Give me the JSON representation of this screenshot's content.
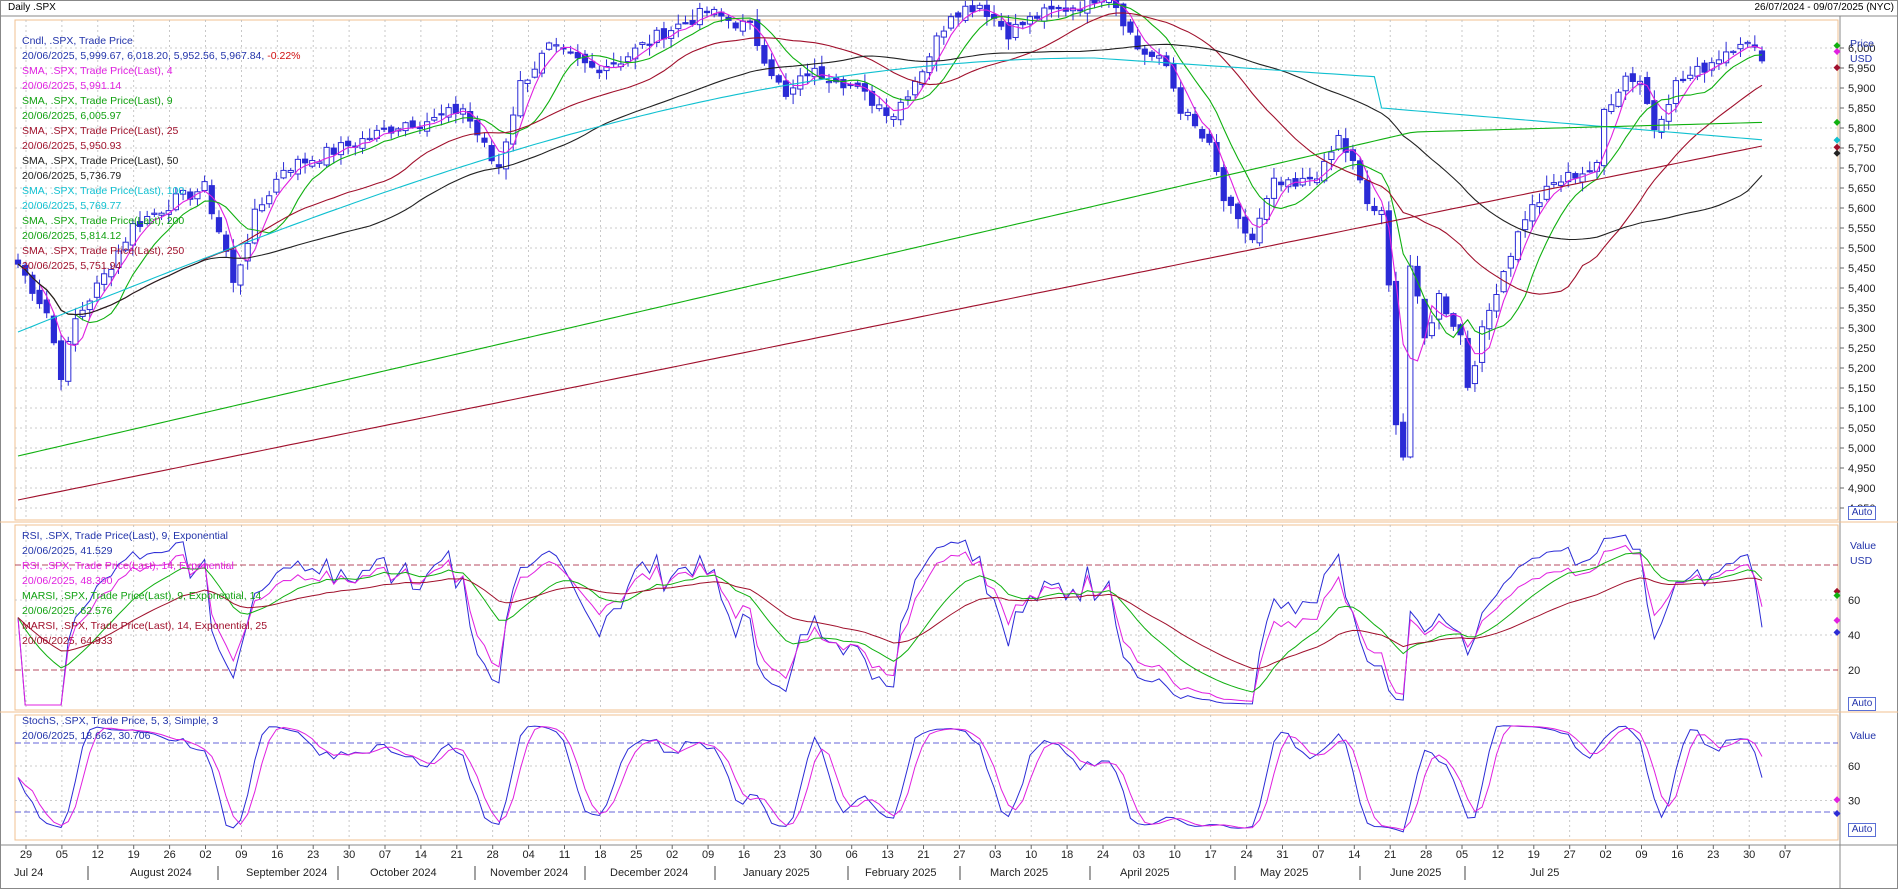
{
  "header": {
    "left": "Daily .SPX",
    "right": "26/07/2024 - 09/07/2025 (NYC)"
  },
  "colors": {
    "candle": "#2b2bd6",
    "sma4": "#e020e0",
    "sma9": "#10b010",
    "sma25": "#a0102c",
    "sma50": "#222222",
    "sma100": "#10c0d0",
    "sma200": "#10b010",
    "sma250": "#a0102c",
    "rsi9": "#2b2bd6",
    "rsi14": "#e020e0",
    "marsi9": "#10b010",
    "marsi14": "#a0102c",
    "stochK": "#2b2bd6",
    "stochD": "#e020e0",
    "grid": "#bbbbbb",
    "frame": "#f0c090"
  },
  "legend": {
    "cndl": {
      "title": "Cndl, .SPX, Trade Price",
      "date": "20/06/2025,",
      "ohlc": "5,999.67, 6,018.20, 5,952.56, 5,967.84,",
      "chg": "-0.22%"
    },
    "sma4": {
      "title": "SMA, .SPX, Trade Price(Last), 4",
      "value": "20/06/2025, 5,991.14"
    },
    "sma9": {
      "title": "SMA, .SPX, Trade Price(Last), 9",
      "value": "20/06/2025, 6,005.97"
    },
    "sma25": {
      "title": "SMA, .SPX, Trade Price(Last), 25",
      "value": "20/06/2025, 5,950.93"
    },
    "sma50": {
      "title": "SMA, .SPX, Trade Price(Last), 50",
      "value": "20/06/2025, 5,736.79"
    },
    "sma100": {
      "title": "SMA, .SPX, Trade Price(Last), 100",
      "value": "20/06/2025, 5,769.77"
    },
    "sma200": {
      "title": "SMA, .SPX, Trade Price(Last), 200",
      "value": "20/06/2025, 5,814.12"
    },
    "sma250": {
      "title": "SMA, .SPX, Trade Price(Last), 250",
      "value": "20/06/2025, 5,751.94"
    }
  },
  "legend_rsi": {
    "rsi9": {
      "title": "RSI, .SPX, Trade Price(Last), 9, Exponential",
      "value": "20/06/2025, 41.529"
    },
    "rsi14": {
      "title": "RSI, .SPX, Trade Price(Last), 14, Exponential",
      "value": "20/06/2025, 48.390"
    },
    "marsi9": {
      "title": "MARSI, .SPX, Trade Price(Last), 9, Exponential, 14",
      "value": "20/06/2025, 62.576"
    },
    "marsi14": {
      "title": "MARSI, .SPX, Trade Price(Last), 14, Exponential, 25",
      "value": "20/06/2025, 64.933"
    }
  },
  "legend_stoch": {
    "title": "StochS, .SPX, Trade Price, 5, 3, Simple, 3",
    "value": "20/06/2025, 18.662, 30.706"
  },
  "axis": {
    "price_title": "Price",
    "price_unit": "USD",
    "value_title": "Value",
    "value_unit": "USD",
    "stoch_title": "Value",
    "auto": "Auto",
    "price_ticks": [
      "6,000",
      "5,950",
      "5,900",
      "5,850",
      "5,800",
      "5,750",
      "5,700",
      "5,650",
      "5,600",
      "5,550",
      "5,500",
      "5,450",
      "5,400",
      "5,350",
      "5,300",
      "5,250",
      "5,200",
      "5,150",
      "5,100",
      "5,050",
      "5,000",
      "4,950",
      "4,900",
      "4,850"
    ],
    "rsi_ticks": [
      "60",
      "40",
      "20"
    ],
    "stoch_ticks": [
      "60",
      "30"
    ]
  },
  "x_axis": {
    "days": [
      "29",
      "05",
      "12",
      "19",
      "26",
      "02",
      "09",
      "16",
      "23",
      "30",
      "07",
      "14",
      "21",
      "28",
      "04",
      "11",
      "18",
      "25",
      "02",
      "09",
      "16",
      "23",
      "30",
      "06",
      "13",
      "21",
      "27",
      "03",
      "10",
      "18",
      "24",
      "03",
      "10",
      "17",
      "24",
      "31",
      "07",
      "14",
      "21",
      "28",
      "05",
      "12",
      "19",
      "27",
      "02",
      "09",
      "16",
      "23",
      "30",
      "07"
    ],
    "months": [
      "Jul 24",
      "August 2024",
      "September 2024",
      "October 2024",
      "November 2024",
      "December 2024",
      "January 2025",
      "February 2025",
      "March 2025",
      "April 2025",
      "May 2025",
      "June 2025",
      "Jul 25"
    ]
  },
  "chart_data": {
    "type": "candlestick",
    "symbol": ".SPX",
    "price_range": [
      4820,
      6070
    ],
    "sample_closes": [
      {
        "date": "2024-07-26",
        "close": 5459
      },
      {
        "date": "2024-08-05",
        "close": 5186
      },
      {
        "date": "2024-08-09",
        "close": 5344
      },
      {
        "date": "2024-08-16",
        "close": 5554
      },
      {
        "date": "2024-08-30",
        "close": 5648
      },
      {
        "date": "2024-09-06",
        "close": 5408
      },
      {
        "date": "2024-09-19",
        "close": 5713
      },
      {
        "date": "2024-10-11",
        "close": 5815
      },
      {
        "date": "2024-10-31",
        "close": 5705
      },
      {
        "date": "2024-11-11",
        "close": 6001
      },
      {
        "date": "2024-12-06",
        "close": 6090
      },
      {
        "date": "2024-12-18",
        "close": 5872
      },
      {
        "date": "2025-01-13",
        "close": 5836
      },
      {
        "date": "2025-01-23",
        "close": 6119
      },
      {
        "date": "2025-02-19",
        "close": 6144
      },
      {
        "date": "2025-03-13",
        "close": 5521
      },
      {
        "date": "2025-03-25",
        "close": 5776
      },
      {
        "date": "2025-04-08",
        "close": 4982
      },
      {
        "date": "2025-04-09",
        "close": 5456
      },
      {
        "date": "2025-04-21",
        "close": 5158
      },
      {
        "date": "2025-05-12",
        "close": 5844
      },
      {
        "date": "2025-05-23",
        "close": 5802
      },
      {
        "date": "2025-06-11",
        "close": 6022
      },
      {
        "date": "2025-06-20",
        "close": 5967.84
      }
    ],
    "last_values": {
      "sma4": 5991.14,
      "sma9": 6005.97,
      "sma25": 5950.93,
      "sma50": 5736.79,
      "sma100": 5769.77,
      "sma200": 5814.12,
      "sma250": 5751.94,
      "rsi9": 41.529,
      "rsi14": 48.39,
      "marsi9": 62.576,
      "marsi14": 64.933,
      "stochK": 18.662,
      "stochD": 30.706
    }
  }
}
